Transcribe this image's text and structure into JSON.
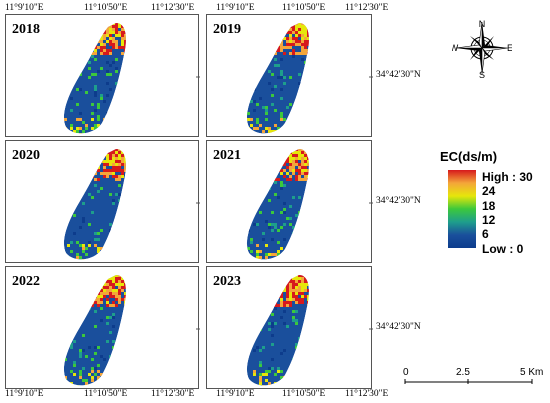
{
  "panels": [
    {
      "year": "2018"
    },
    {
      "year": "2019"
    },
    {
      "year": "2020"
    },
    {
      "year": "2021"
    },
    {
      "year": "2022"
    },
    {
      "year": "2023"
    }
  ],
  "coordinates": {
    "lon_left": [
      "11°9'10\"E",
      "11°10'50\"E",
      "11°12'30\"E"
    ],
    "lon_right": [
      "11°9'10\"E",
      "11°10'50\"E",
      "11°12'30\"E"
    ],
    "lat": "34°42'30\"N"
  },
  "compass": {
    "n": "N",
    "s": "S",
    "e": "E",
    "w": "W"
  },
  "legend": {
    "title": "EC(ds/m)",
    "labels": [
      "High : 30",
      "24",
      "18",
      "12",
      "6",
      "Low : 0"
    ],
    "colors": [
      "#d7191c",
      "#f4a53a",
      "#e6e60a",
      "#3cc83c",
      "#1e9e8c",
      "#1a4f9c",
      "#0d3c8c"
    ]
  },
  "scale_bar": {
    "labels": [
      "0",
      "2.5",
      "5 Km"
    ]
  }
}
